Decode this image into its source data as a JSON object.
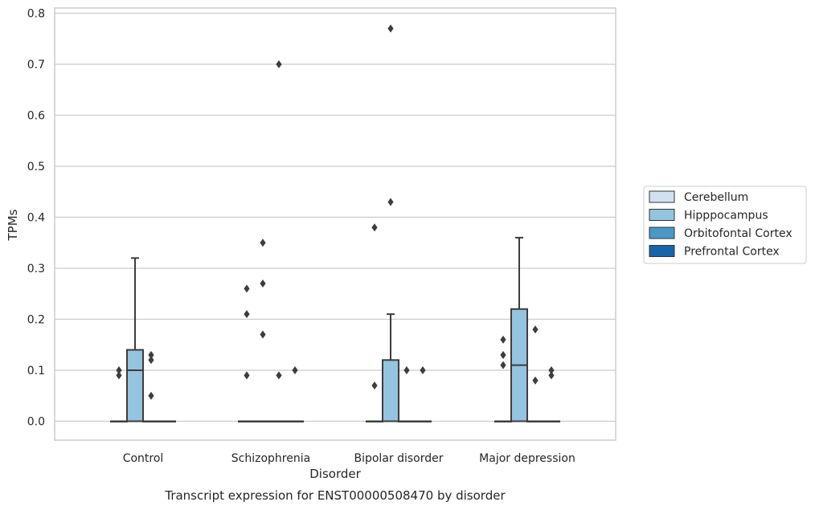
{
  "chart_data": {
    "type": "box",
    "title": "",
    "caption": "Transcript expression for ENST00000508470 by disorder",
    "xlabel": "Disorder",
    "ylabel": "TPMs",
    "ylim": [
      -0.037,
      0.812
    ],
    "yticks": [
      0.0,
      0.1,
      0.2,
      0.3,
      0.4,
      0.5,
      0.6,
      0.7,
      0.8
    ],
    "ytick_labels": [
      "0.0",
      "0.1",
      "0.2",
      "0.3",
      "0.4",
      "0.5",
      "0.6",
      "0.7",
      "0.8"
    ],
    "categories": [
      "Control",
      "Schizophrenia",
      "Bipolar disorder",
      "Major depression"
    ],
    "grid": "horizontal",
    "legend_position": "right",
    "series": [
      {
        "name": "Cerebellum",
        "color": "#d0e1f2",
        "boxes": [
          {
            "q1": 0,
            "median": 0,
            "q3": 0,
            "whisker_low": 0,
            "whisker_high": 0,
            "outliers": [
              0.09,
              0.1
            ]
          },
          {
            "q1": 0,
            "median": 0,
            "q3": 0,
            "whisker_low": 0,
            "whisker_high": 0,
            "outliers": [
              0.09,
              0.21,
              0.26
            ]
          },
          {
            "q1": 0,
            "median": 0,
            "q3": 0,
            "whisker_low": 0,
            "whisker_high": 0,
            "outliers": [
              0.07,
              0.38
            ]
          },
          {
            "q1": 0,
            "median": 0,
            "q3": 0,
            "whisker_low": 0,
            "whisker_high": 0,
            "outliers": [
              0.11,
              0.13,
              0.16
            ]
          }
        ]
      },
      {
        "name": "Hipppocampus",
        "color": "#94c4df",
        "boxes": [
          {
            "q1": 0,
            "median": 0.1,
            "q3": 0.14,
            "whisker_low": 0,
            "whisker_high": 0.32,
            "outliers": []
          },
          {
            "q1": 0,
            "median": 0,
            "q3": 0,
            "whisker_low": 0,
            "whisker_high": 0,
            "outliers": [
              0.17,
              0.27,
              0.35
            ]
          },
          {
            "q1": 0,
            "median": 0,
            "q3": 0.12,
            "whisker_low": 0,
            "whisker_high": 0.21,
            "outliers": [
              0.43,
              0.77
            ]
          },
          {
            "q1": 0,
            "median": 0.11,
            "q3": 0.22,
            "whisker_low": 0,
            "whisker_high": 0.36,
            "outliers": []
          }
        ]
      },
      {
        "name": "Orbitofontal Cortex",
        "color": "#4a98c9",
        "boxes": [
          {
            "q1": 0,
            "median": 0,
            "q3": 0,
            "whisker_low": 0,
            "whisker_high": 0,
            "outliers": [
              0.05,
              0.12,
              0.13
            ]
          },
          {
            "q1": 0,
            "median": 0,
            "q3": 0,
            "whisker_low": 0,
            "whisker_high": 0,
            "outliers": [
              0.09,
              0.7
            ]
          },
          {
            "q1": 0,
            "median": 0,
            "q3": 0,
            "whisker_low": 0,
            "whisker_high": 0,
            "outliers": [
              0.1
            ]
          },
          {
            "q1": 0,
            "median": 0,
            "q3": 0,
            "whisker_low": 0,
            "whisker_high": 0,
            "outliers": [
              0.08,
              0.18
            ]
          }
        ]
      },
      {
        "name": "Prefrontal Cortex",
        "color": "#1764ab",
        "boxes": [
          {
            "q1": 0,
            "median": 0,
            "q3": 0,
            "whisker_low": 0,
            "whisker_high": 0,
            "outliers": []
          },
          {
            "q1": 0,
            "median": 0,
            "q3": 0,
            "whisker_low": 0,
            "whisker_high": 0,
            "outliers": [
              0.1
            ]
          },
          {
            "q1": 0,
            "median": 0,
            "q3": 0,
            "whisker_low": 0,
            "whisker_high": 0,
            "outliers": [
              0.1
            ]
          },
          {
            "q1": 0,
            "median": 0,
            "q3": 0,
            "whisker_low": 0,
            "whisker_high": 0,
            "outliers": [
              0.09,
              0.1
            ]
          }
        ]
      }
    ]
  }
}
